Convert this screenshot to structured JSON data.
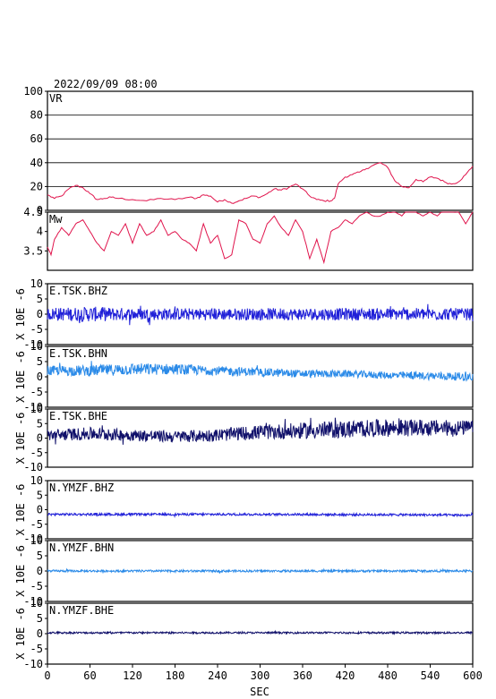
{
  "header": {
    "datetime": "2022/09/09 08:00"
  },
  "chart_data": {
    "type": "line",
    "x_axis": {
      "label": "SEC",
      "range": [
        0,
        600
      ],
      "ticks": [
        0,
        60,
        120,
        180,
        240,
        300,
        360,
        420,
        480,
        540,
        600
      ]
    },
    "panels": [
      {
        "id": "vr",
        "label": "VR",
        "color": "#e0144c",
        "ylim": [
          0,
          100
        ],
        "yticks": [
          0,
          20,
          40,
          60,
          80,
          100
        ],
        "grid": true,
        "ylabel": "",
        "series": {
          "x": [
            0,
            10,
            20,
            30,
            40,
            50,
            60,
            70,
            80,
            90,
            100,
            120,
            140,
            160,
            180,
            200,
            210,
            220,
            230,
            240,
            250,
            260,
            270,
            280,
            290,
            300,
            310,
            320,
            330,
            340,
            350,
            360,
            370,
            380,
            390,
            400,
            405,
            410,
            420,
            430,
            440,
            450,
            460,
            470,
            480,
            490,
            500,
            510,
            520,
            530,
            540,
            550,
            560,
            570,
            580,
            590,
            600
          ],
          "y": [
            13,
            10,
            12,
            18,
            21,
            19,
            14,
            9,
            10,
            11,
            10,
            9,
            8,
            10,
            9,
            11,
            10,
            13,
            12,
            7,
            9,
            6,
            8,
            10,
            12,
            11,
            14,
            18,
            17,
            19,
            22,
            18,
            12,
            9,
            8,
            8,
            10,
            22,
            28,
            30,
            32,
            35,
            38,
            40,
            36,
            25,
            20,
            19,
            26,
            24,
            28,
            27,
            24,
            22,
            24,
            30,
            37
          ]
        }
      },
      {
        "id": "mw",
        "label": "Mw",
        "color": "#e0144c",
        "ylim": [
          3.0,
          4.5
        ],
        "yticks": [
          3.5,
          4.0,
          4.5
        ],
        "grid": false,
        "ylabel": "",
        "series": {
          "x": [
            0,
            5,
            10,
            20,
            30,
            40,
            50,
            60,
            70,
            80,
            90,
            100,
            110,
            120,
            130,
            140,
            150,
            160,
            170,
            180,
            190,
            200,
            210,
            220,
            230,
            240,
            250,
            260,
            270,
            280,
            290,
            300,
            310,
            320,
            330,
            340,
            350,
            360,
            370,
            380,
            390,
            400,
            410,
            420,
            430,
            440,
            450,
            460,
            470,
            480,
            490,
            500,
            510,
            520,
            530,
            540,
            550,
            560,
            570,
            580,
            590,
            600
          ],
          "y": [
            3.6,
            3.4,
            3.8,
            4.1,
            3.9,
            4.2,
            4.3,
            4.0,
            3.7,
            3.5,
            4.0,
            3.9,
            4.2,
            3.7,
            4.2,
            3.9,
            4.0,
            4.3,
            3.9,
            4.0,
            3.8,
            3.7,
            3.5,
            4.2,
            3.7,
            3.9,
            3.3,
            3.4,
            4.3,
            4.2,
            3.8,
            3.7,
            4.2,
            4.4,
            4.1,
            3.9,
            4.3,
            4.0,
            3.3,
            3.8,
            3.2,
            4.0,
            4.1,
            4.3,
            4.2,
            4.4,
            4.5,
            4.4,
            4.4,
            4.5,
            4.5,
            4.4,
            4.6,
            4.5,
            4.4,
            4.5,
            4.4,
            4.6,
            4.5,
            4.5,
            4.2,
            4.5
          ]
        }
      },
      {
        "id": "e-tsk-bhz",
        "label": "E.TSK.BHZ",
        "color": "#2020d8",
        "ylim": [
          -10,
          10
        ],
        "yticks": [
          -10,
          -5,
          0,
          5,
          10
        ],
        "ylabel": "X 10E -6",
        "trace": {
          "offset": [
            0,
            0,
            0,
            0,
            0,
            0,
            0,
            0,
            0,
            0,
            0
          ],
          "amplitude": [
            2.0,
            2.5,
            2.0,
            2.0,
            2.0,
            2.0,
            2.0,
            2.0,
            2.0,
            2.0,
            2.0
          ]
        }
      },
      {
        "id": "e-tsk-bhn",
        "label": "E.TSK.BHN",
        "color": "#2a8ae8",
        "ylim": [
          -10,
          10
        ],
        "yticks": [
          -10,
          -5,
          0,
          5,
          10
        ],
        "ylabel": "X 10E -6",
        "trace": {
          "offset": [
            2.0,
            2.0,
            2.5,
            2.5,
            2.0,
            1.5,
            1.0,
            1.0,
            0.5,
            0.3,
            0.0
          ],
          "amplitude": [
            1.6,
            1.8,
            2.0,
            1.8,
            1.5,
            1.4,
            1.3,
            1.2,
            1.2,
            1.3,
            1.4
          ]
        }
      },
      {
        "id": "e-tsk-bhe",
        "label": "E.TSK.BHE",
        "color": "#10106a",
        "ylim": [
          -10,
          10
        ],
        "yticks": [
          -10,
          -5,
          0,
          5,
          10
        ],
        "ylabel": "X 10E -6",
        "trace": {
          "offset": [
            1.0,
            1.5,
            1.0,
            0.5,
            1.0,
            2.0,
            2.5,
            3.0,
            3.5,
            3.5,
            3.5
          ],
          "amplitude": [
            2.0,
            2.2,
            2.0,
            2.0,
            2.2,
            2.5,
            2.8,
            3.0,
            3.0,
            2.8,
            2.6
          ]
        }
      },
      {
        "id": "n-ymzf-bhz",
        "label": "N.YMZF.BHZ",
        "color": "#2020d8",
        "ylim": [
          -10,
          10
        ],
        "yticks": [
          -10,
          -5,
          0,
          5,
          10
        ],
        "ylabel": "X 10E -6",
        "trace": {
          "offset": [
            -1.6,
            -1.6,
            -1.6,
            -1.6,
            -1.6,
            -1.6,
            -1.6,
            -1.7,
            -1.7,
            -1.8,
            -1.9
          ],
          "amplitude": [
            0.4,
            0.4,
            0.4,
            0.4,
            0.4,
            0.4,
            0.4,
            0.4,
            0.4,
            0.4,
            0.4
          ]
        }
      },
      {
        "id": "n-ymzf-bhn",
        "label": "N.YMZF.BHN",
        "color": "#2a8ae8",
        "ylim": [
          -10,
          10
        ],
        "yticks": [
          -10,
          -5,
          0,
          5,
          10
        ],
        "ylabel": "X 10E -6",
        "trace": {
          "offset": [
            0.0,
            0.0,
            0.0,
            0.0,
            0.0,
            0.0,
            0.0,
            0.0,
            0.0,
            0.0,
            0.0
          ],
          "amplitude": [
            0.35,
            0.35,
            0.35,
            0.35,
            0.35,
            0.35,
            0.35,
            0.35,
            0.35,
            0.35,
            0.35
          ]
        }
      },
      {
        "id": "n-ymzf-bhe",
        "label": "N.YMZF.BHE",
        "color": "#10106a",
        "ylim": [
          -10,
          10
        ],
        "yticks": [
          -10,
          -5,
          0,
          5,
          10
        ],
        "ylabel": "X 10E -6",
        "trace": {
          "offset": [
            0.3,
            0.3,
            0.3,
            0.3,
            0.3,
            0.3,
            0.3,
            0.3,
            0.3,
            0.3,
            0.3
          ],
          "amplitude": [
            0.3,
            0.3,
            0.3,
            0.3,
            0.3,
            0.3,
            0.3,
            0.3,
            0.3,
            0.3,
            0.3
          ]
        }
      }
    ]
  }
}
